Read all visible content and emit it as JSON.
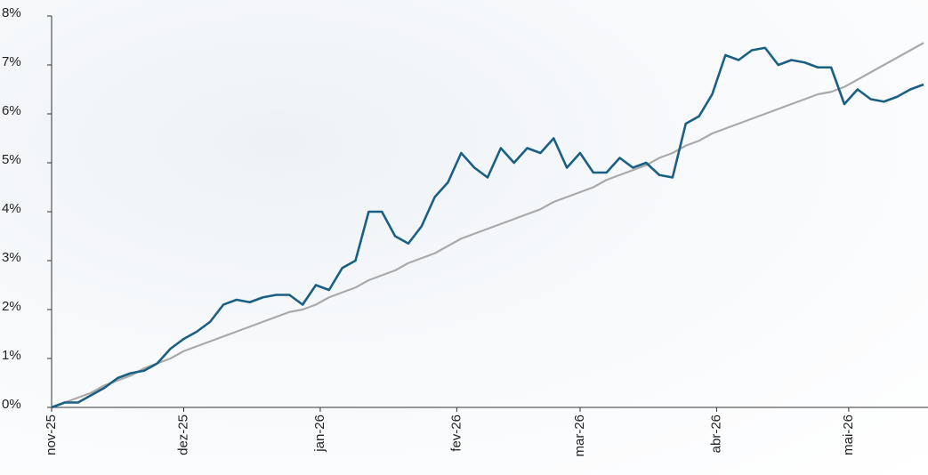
{
  "chart_data": {
    "type": "line",
    "x": [
      0,
      3,
      6,
      9,
      12,
      15,
      18,
      21,
      24,
      27,
      30,
      33,
      36,
      39,
      42,
      45,
      48,
      51,
      54,
      57,
      60,
      63,
      66,
      69,
      72,
      75,
      78,
      81,
      84,
      87,
      90,
      93,
      96,
      99,
      102,
      105,
      108,
      111,
      114,
      117,
      120,
      123,
      126,
      129,
      132,
      135,
      138,
      141,
      144,
      147,
      150,
      153,
      156,
      159,
      162,
      165,
      168,
      171,
      174,
      177,
      180,
      183,
      186,
      189,
      192,
      195,
      198
    ],
    "series": [
      {
        "color": "#1a5f84",
        "values": [
          0,
          0.1,
          0.1,
          0.25,
          0.4,
          0.6,
          0.7,
          0.75,
          0.9,
          1.2,
          1.4,
          1.55,
          1.75,
          2.1,
          2.2,
          2.15,
          2.25,
          2.3,
          2.3,
          2.1,
          2.5,
          2.4,
          2.85,
          3.0,
          4.0,
          4.0,
          3.5,
          3.35,
          3.7,
          4.3,
          4.6,
          5.2,
          4.9,
          4.7,
          5.3,
          5.0,
          5.3,
          5.2,
          5.5,
          4.9,
          5.2,
          4.8,
          4.8,
          5.1,
          4.9,
          5.0,
          4.75,
          4.7,
          5.8,
          5.95,
          6.4,
          7.2,
          7.1,
          7.3,
          7.35,
          7.0,
          7.1,
          7.05,
          6.95,
          6.95,
          6.2,
          6.5,
          6.3,
          6.25,
          6.35,
          6.5,
          6.6
        ]
      },
      {
        "color": "#aaaaaa",
        "values": [
          0,
          0.1,
          0.2,
          0.3,
          0.45,
          0.55,
          0.65,
          0.8,
          0.9,
          1.0,
          1.15,
          1.25,
          1.35,
          1.45,
          1.55,
          1.65,
          1.75,
          1.85,
          1.95,
          2.0,
          2.1,
          2.25,
          2.35,
          2.45,
          2.6,
          2.7,
          2.8,
          2.95,
          3.05,
          3.15,
          3.3,
          3.45,
          3.55,
          3.65,
          3.75,
          3.85,
          3.95,
          4.05,
          4.2,
          4.3,
          4.4,
          4.5,
          4.65,
          4.75,
          4.85,
          4.95,
          5.1,
          5.2,
          5.35,
          5.45,
          5.6,
          5.7,
          5.8,
          5.9,
          6.0,
          6.1,
          6.2,
          6.3,
          6.4,
          6.45,
          6.55,
          6.7,
          6.85,
          7.0,
          7.15,
          7.3,
          7.45
        ]
      }
    ],
    "xlim": [
      0,
      199
    ],
    "xticks": [
      {
        "value": 0,
        "label": "nov-25"
      },
      {
        "value": 30,
        "label": "dez-25"
      },
      {
        "value": 61,
        "label": "jan-26"
      },
      {
        "value": 92,
        "label": "fev-26"
      },
      {
        "value": 120,
        "label": "mar-26"
      },
      {
        "value": 151,
        "label": "abr-26"
      },
      {
        "value": 181,
        "label": "mai-26"
      }
    ],
    "ylim": [
      0,
      8
    ],
    "yticks": [
      {
        "value": 0,
        "label": "0%"
      },
      {
        "value": 1,
        "label": "1%"
      },
      {
        "value": 2,
        "label": "2%"
      },
      {
        "value": 3,
        "label": "3%"
      },
      {
        "value": 4,
        "label": "4%"
      },
      {
        "value": 5,
        "label": "5%"
      },
      {
        "value": 6,
        "label": "6%"
      },
      {
        "value": 7,
        "label": "7%"
      },
      {
        "value": 8,
        "label": "8%"
      }
    ]
  }
}
